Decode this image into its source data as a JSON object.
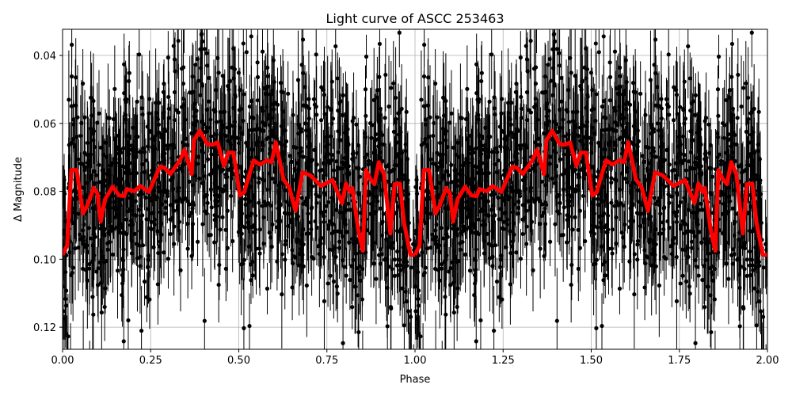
{
  "chart_data": {
    "type": "scatter",
    "title": "Light curve of ASCC 253463",
    "xlabel": "Phase",
    "ylabel": "Δ Magnitude",
    "xlim": [
      0,
      2
    ],
    "ylim": [
      0.0323,
      0.1265
    ],
    "y_inverted": true,
    "grid": true,
    "x_ticks": [
      "0.00",
      "0.25",
      "0.50",
      "0.75",
      "1.00",
      "1.25",
      "1.50",
      "1.75",
      "2.00"
    ],
    "y_ticks": [
      "0.04",
      "0.06",
      "0.08",
      "0.10",
      "0.12"
    ],
    "observations": {
      "marker_color": "#000000",
      "error_bars": true
    },
    "model_curve": {
      "color": "#ff0000",
      "period_repeat": true,
      "phase": [
        0,
        0.013,
        0.025,
        0.04,
        0.058,
        0.07,
        0.088,
        0.099,
        0.108,
        0.121,
        0.142,
        0.16,
        0.175,
        0.182,
        0.204,
        0.22,
        0.245,
        0.276,
        0.288,
        0.306,
        0.333,
        0.346,
        0.366,
        0.373,
        0.389,
        0.411,
        0.425,
        0.44,
        0.458,
        0.47,
        0.485,
        0.503,
        0.515,
        0.542,
        0.56,
        0.58,
        0.593,
        0.605,
        0.627,
        0.643,
        0.661,
        0.681,
        0.703,
        0.733,
        0.766,
        0.793,
        0.804,
        0.816,
        0.822,
        0.84,
        0.852,
        0.861,
        0.874,
        0.885,
        0.897,
        0.912,
        0.93,
        0.942,
        0.957,
        0.969,
        0.987,
        1.0
      ],
      "magnitude": [
        0.0987,
        0.0959,
        0.0737,
        0.0737,
        0.0865,
        0.0842,
        0.079,
        0.0807,
        0.0889,
        0.0823,
        0.0786,
        0.0812,
        0.0814,
        0.0793,
        0.08,
        0.0784,
        0.0802,
        0.0728,
        0.073,
        0.0749,
        0.0709,
        0.0677,
        0.0749,
        0.0649,
        0.0622,
        0.0661,
        0.0663,
        0.0656,
        0.0725,
        0.0686,
        0.0686,
        0.0812,
        0.0803,
        0.0709,
        0.0721,
        0.0709,
        0.0714,
        0.0656,
        0.0765,
        0.0788,
        0.0858,
        0.0744,
        0.0753,
        0.0784,
        0.0767,
        0.0835,
        0.0777,
        0.0802,
        0.079,
        0.0919,
        0.0975,
        0.0737,
        0.0765,
        0.0779,
        0.0714,
        0.0749,
        0.0924,
        0.0779,
        0.0777,
        0.0893,
        0.0987,
        0.0987
      ]
    }
  }
}
